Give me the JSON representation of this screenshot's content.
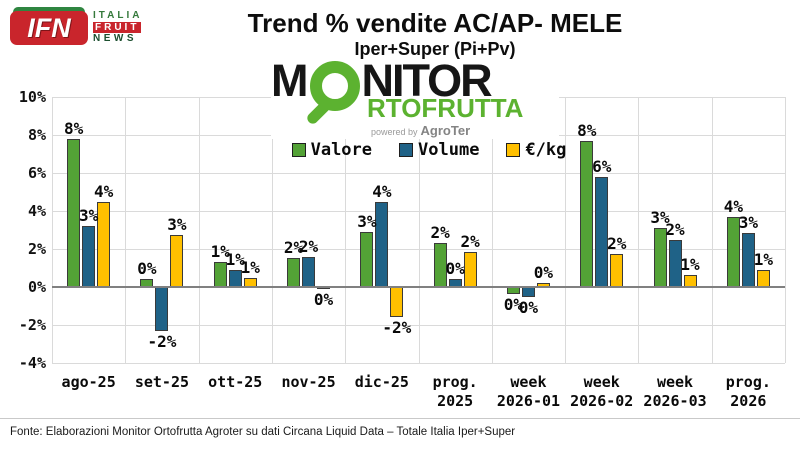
{
  "brand": {
    "badge": "IFN",
    "line1": "ITALIA",
    "line2": "FRUIT",
    "line3": "NEWS"
  },
  "header": {
    "title": "Trend % vendite AC/AP- MELE",
    "subtitle": "Iper+Super (Pi+Pv)"
  },
  "logo": {
    "part1": "M",
    "part2": "NITOR",
    "line2": "RTOFRUTTA",
    "powered_prefix": "powered by",
    "powered_brand": "AgroTer",
    "green": "#5cb230"
  },
  "chart_data": {
    "type": "bar",
    "title": "Trend % vendite AC/AP- MELE",
    "subtitle": "Iper+Super (Pi+Pv)",
    "categories": [
      [
        "ago-25",
        ""
      ],
      [
        "set-25",
        ""
      ],
      [
        "ott-25",
        ""
      ],
      [
        "nov-25",
        ""
      ],
      [
        "dic-25",
        ""
      ],
      [
        "prog.",
        "2025"
      ],
      [
        "week",
        "2026-01"
      ],
      [
        "week",
        "2026-02"
      ],
      [
        "week",
        "2026-03"
      ],
      [
        "prog.",
        "2026"
      ]
    ],
    "series": [
      {
        "name": "Valore",
        "color": "#53a236",
        "values": [
          7.8,
          0.4,
          1.3,
          1.55,
          2.9,
          2.3,
          -0.35,
          7.7,
          3.1,
          3.7
        ],
        "labels": [
          "8%",
          "0%",
          "1%",
          "2%",
          "3%",
          "2%",
          "0%",
          "8%",
          "3%",
          "4%"
        ]
      },
      {
        "name": "Volume",
        "color": "#1f6287",
        "values": [
          3.2,
          -2.3,
          0.9,
          1.6,
          4.45,
          0.4,
          -0.5,
          5.8,
          2.5,
          2.85
        ],
        "labels": [
          "3%",
          "-2%",
          "1%",
          "2%",
          "4%",
          "0%",
          "0%",
          "6%",
          "2%",
          "3%"
        ]
      },
      {
        "name": "€/kg",
        "color": "#ffc000",
        "values": [
          4.45,
          2.75,
          0.5,
          -0.1,
          -1.6,
          1.85,
          0.2,
          1.75,
          0.65,
          0.9
        ],
        "labels": [
          "4%",
          "3%",
          "1%",
          "0%",
          "-2%",
          "2%",
          "0%",
          "2%",
          "1%",
          "1%"
        ]
      }
    ],
    "y_ticks": [
      {
        "value": 10,
        "label": "10%"
      },
      {
        "value": 8,
        "label": "8%"
      },
      {
        "value": 6,
        "label": "6%"
      },
      {
        "value": 4,
        "label": "4%"
      },
      {
        "value": 2,
        "label": "2%"
      },
      {
        "value": 0,
        "label": "0%"
      },
      {
        "value": -2,
        "label": "-2%"
      },
      {
        "value": -4,
        "label": "-4%"
      }
    ],
    "ylim": [
      -4,
      10
    ],
    "grid": true,
    "legend_position": "top-center"
  },
  "footer": {
    "source": "Fonte: Elaborazioni Monitor Ortofrutta Agroter su dati Circana Liquid Data – Totale Italia Iper+Super"
  }
}
